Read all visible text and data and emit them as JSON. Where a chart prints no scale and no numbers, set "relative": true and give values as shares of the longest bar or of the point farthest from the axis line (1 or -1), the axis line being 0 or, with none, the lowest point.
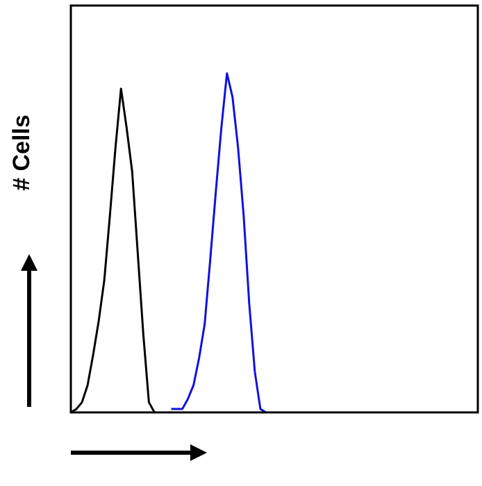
{
  "chart_data": {
    "type": "line",
    "relative": true,
    "ylabel": "# Cells",
    "legend": false,
    "marker": "none",
    "tick_labels": false,
    "categories": [
      null,
      null,
      null,
      null,
      null,
      null,
      null,
      null,
      null,
      null,
      null,
      null,
      null,
      null,
      null,
      null,
      null,
      null,
      null,
      null,
      null,
      null,
      null,
      null,
      null,
      null,
      null,
      null,
      null,
      null,
      null,
      null,
      null,
      null,
      null,
      null,
      null,
      null,
      null,
      null,
      null,
      null,
      null,
      null,
      null,
      null,
      null,
      null,
      null,
      null,
      null,
      null,
      null,
      null,
      null,
      null,
      null,
      null,
      null,
      null,
      null,
      null,
      null,
      null,
      null,
      null,
      null,
      null,
      null,
      null,
      null,
      null,
      null,
      null
    ],
    "series": [
      {
        "color": "#000000",
        "values": [
          0,
          0.01,
          0.03,
          0.08,
          0.17,
          0.27,
          0.39,
          0.58,
          0.78,
          0.955,
          0.84,
          0.71,
          0.47,
          0.23,
          0.03,
          0,
          null,
          null,
          null,
          null,
          null,
          null,
          null,
          null,
          null,
          null,
          null,
          null,
          null,
          null,
          null,
          null,
          null,
          null,
          null,
          null,
          null,
          null,
          null,
          null,
          null,
          null,
          null,
          null,
          null,
          null,
          null,
          null,
          null,
          null,
          null,
          null,
          null,
          null,
          null,
          null,
          null,
          null,
          null,
          null,
          null,
          null,
          null,
          null,
          null,
          null,
          null,
          null,
          null,
          null,
          null,
          null,
          null,
          null
        ]
      },
      {
        "color": "#1010e0",
        "values": [
          null,
          null,
          null,
          null,
          null,
          null,
          null,
          null,
          null,
          null,
          null,
          null,
          null,
          null,
          null,
          null,
          null,
          null,
          0.01,
          0.01,
          0.01,
          0.04,
          0.08,
          0.16,
          0.26,
          0.45,
          0.65,
          0.84,
          1,
          0.93,
          0.78,
          0.58,
          0.32,
          0.12,
          0.01,
          0,
          null,
          null,
          null,
          null,
          null,
          null,
          null,
          null,
          null,
          null,
          null,
          null,
          null,
          null,
          null,
          null,
          null,
          null,
          null,
          null,
          null,
          null,
          null,
          null,
          null,
          null,
          null,
          null,
          null,
          null,
          null,
          null,
          null,
          null,
          null,
          null,
          null,
          null
        ]
      }
    ]
  }
}
